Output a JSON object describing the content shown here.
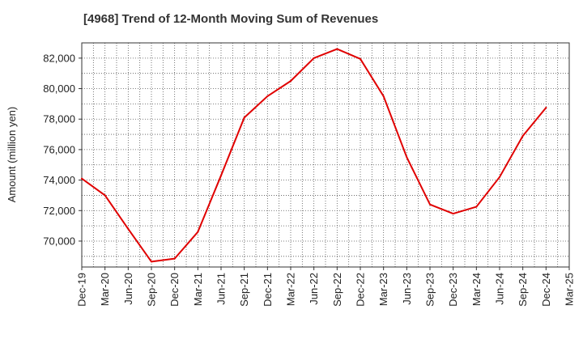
{
  "chart_data": {
    "type": "line",
    "title": "[4968]  Trend of 12-Month Moving Sum of Revenues",
    "xlabel": "",
    "ylabel": "Amount (million yen)",
    "categories": [
      "Dec-19",
      "Mar-20",
      "Jun-20",
      "Sep-20",
      "Dec-20",
      "Mar-21",
      "Jun-21",
      "Sep-21",
      "Dec-21",
      "Mar-22",
      "Jun-22",
      "Sep-22",
      "Dec-22",
      "Mar-23",
      "Jun-23",
      "Sep-23",
      "Dec-23",
      "Mar-24",
      "Jun-24",
      "Sep-24",
      "Dec-24",
      "Mar-25"
    ],
    "series": [
      {
        "color": "#e00000",
        "values": [
          74100,
          73000,
          70800,
          68650,
          68850,
          70600,
          74300,
          78100,
          79500,
          80500,
          82000,
          82600,
          81950,
          79500,
          75500,
          72400,
          71800,
          72250,
          74200,
          76900,
          78750,
          null
        ]
      }
    ],
    "y_ticks": [
      70000,
      72000,
      74000,
      76000,
      78000,
      80000,
      82000
    ],
    "y_tick_labels": [
      "70,000",
      "72,000",
      "74,000",
      "76,000",
      "78,000",
      "80,000",
      "82,000"
    ],
    "ylim": [
      68300,
      83000
    ],
    "grid": true,
    "grid_style": "dotted",
    "legend": "none"
  }
}
